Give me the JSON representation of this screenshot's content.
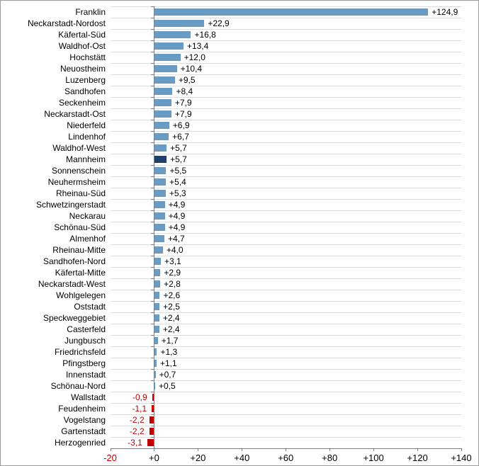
{
  "chart_data": {
    "type": "bar",
    "orientation": "horizontal",
    "title": "",
    "xlabel": "",
    "ylabel": "",
    "xlim": [
      -20,
      140
    ],
    "grid": "horizontal-row-separators",
    "legend": "none",
    "highlight_category": "Mannheim",
    "x_ticks": [
      {
        "value": -20,
        "label": "-20"
      },
      {
        "value": 0,
        "label": "+0"
      },
      {
        "value": 20,
        "label": "+20"
      },
      {
        "value": 40,
        "label": "+40"
      },
      {
        "value": 60,
        "label": "+60"
      },
      {
        "value": 80,
        "label": "+80"
      },
      {
        "value": 100,
        "label": "+100"
      },
      {
        "value": 120,
        "label": "+120"
      },
      {
        "value": 140,
        "label": "+140"
      }
    ],
    "rows": [
      {
        "category": "Franklin",
        "value": 124.9,
        "label": "+124,9"
      },
      {
        "category": "Neckarstadt-Nordost",
        "value": 22.9,
        "label": "+22,9"
      },
      {
        "category": "Käfertal-Süd",
        "value": 16.8,
        "label": "+16,8"
      },
      {
        "category": "Waldhof-Ost",
        "value": 13.4,
        "label": "+13,4"
      },
      {
        "category": "Hochstätt",
        "value": 12.0,
        "label": "+12,0"
      },
      {
        "category": "Neuostheim",
        "value": 10.4,
        "label": "+10,4"
      },
      {
        "category": "Luzenberg",
        "value": 9.5,
        "label": "+9,5"
      },
      {
        "category": "Sandhofen",
        "value": 8.4,
        "label": "+8,4"
      },
      {
        "category": "Seckenheim",
        "value": 7.9,
        "label": "+7,9"
      },
      {
        "category": "Neckarstadt-Ost",
        "value": 7.9,
        "label": "+7,9"
      },
      {
        "category": "Niederfeld",
        "value": 6.9,
        "label": "+6,9"
      },
      {
        "category": "Lindenhof",
        "value": 6.7,
        "label": "+6,7"
      },
      {
        "category": "Waldhof-West",
        "value": 5.7,
        "label": "+5,7"
      },
      {
        "category": "Mannheim",
        "value": 5.7,
        "label": "+5,7"
      },
      {
        "category": "Sonnenschein",
        "value": 5.5,
        "label": "+5,5"
      },
      {
        "category": "Neuhermsheim",
        "value": 5.4,
        "label": "+5,4"
      },
      {
        "category": "Rheinau-Süd",
        "value": 5.3,
        "label": "+5,3"
      },
      {
        "category": "Schwetzingerstadt",
        "value": 4.9,
        "label": "+4,9"
      },
      {
        "category": "Neckarau",
        "value": 4.9,
        "label": "+4,9"
      },
      {
        "category": "Schönau-Süd",
        "value": 4.9,
        "label": "+4,9"
      },
      {
        "category": "Almenhof",
        "value": 4.7,
        "label": "+4,7"
      },
      {
        "category": "Rheinau-Mitte",
        "value": 4.0,
        "label": "+4,0"
      },
      {
        "category": "Sandhofen-Nord",
        "value": 3.1,
        "label": "+3,1"
      },
      {
        "category": "Käfertal-Mitte",
        "value": 2.9,
        "label": "+2,9"
      },
      {
        "category": "Neckarstadt-West",
        "value": 2.8,
        "label": "+2,8"
      },
      {
        "category": "Wohlgelegen",
        "value": 2.6,
        "label": "+2,6"
      },
      {
        "category": "Oststadt",
        "value": 2.5,
        "label": "+2,5"
      },
      {
        "category": "Speckweggebiet",
        "value": 2.4,
        "label": "+2,4"
      },
      {
        "category": "Casterfeld",
        "value": 2.4,
        "label": "+2,4"
      },
      {
        "category": "Jungbusch",
        "value": 1.7,
        "label": "+1,7"
      },
      {
        "category": "Friedrichsfeld",
        "value": 1.3,
        "label": "+1,3"
      },
      {
        "category": "Pfingstberg",
        "value": 1.1,
        "label": "+1,1"
      },
      {
        "category": "Innenstadt",
        "value": 0.7,
        "label": "+0,7"
      },
      {
        "category": "Schönau-Nord",
        "value": 0.5,
        "label": "+0,5"
      },
      {
        "category": "Wallstadt",
        "value": -0.9,
        "label": "-0,9"
      },
      {
        "category": "Feudenheim",
        "value": -1.1,
        "label": "-1,1"
      },
      {
        "category": "Vogelstang",
        "value": -2.2,
        "label": "-2,2"
      },
      {
        "category": "Gartenstadt",
        "value": -2.2,
        "label": "-2,2"
      },
      {
        "category": "Herzogenried",
        "value": -3.1,
        "label": "-3,1"
      }
    ],
    "colors": {
      "bar_positive": "#6A9BC3",
      "bar_highlight": "#1F4068",
      "bar_negative": "#C00000",
      "label_positive": "#000000",
      "label_negative": "#C00000",
      "tick_label_positive": "#000000",
      "tick_label_negative": "#C00000",
      "gridline": "#DDDDDD",
      "axis": "#808080"
    }
  }
}
